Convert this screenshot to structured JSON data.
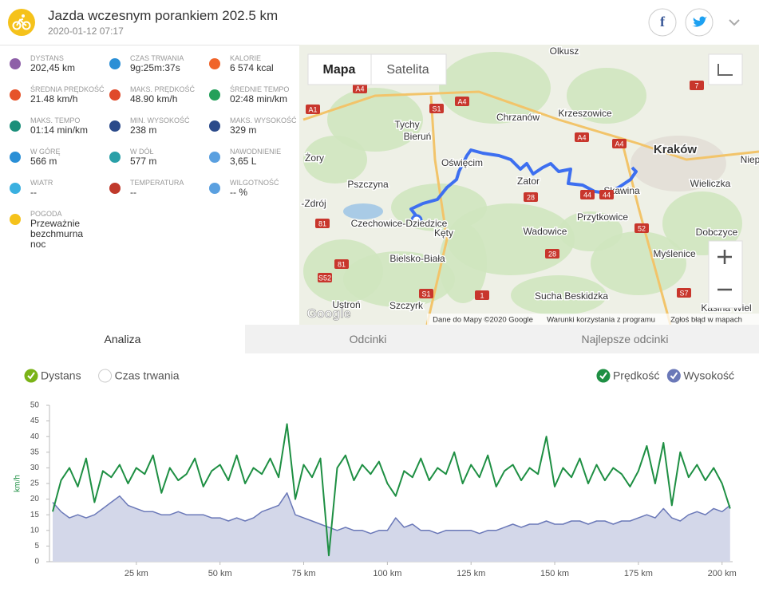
{
  "header": {
    "title": "Jazda wczesnym porankiem 202.5 km",
    "date": "2020-01-12 07:17"
  },
  "stats": [
    {
      "label": "DYSTANS",
      "value": "202,45 km"
    },
    {
      "label": "CZAS TRWANIA",
      "value": "9g:25m:37s"
    },
    {
      "label": "KALORIE",
      "value": "6 574 kcal"
    },
    {
      "label": "ŚREDNIA PRĘDKOŚĆ",
      "value": "21.48 km/h"
    },
    {
      "label": "MAKS. PRĘDKOŚĆ",
      "value": "48.90 km/h"
    },
    {
      "label": "ŚREDNIE TEMPO",
      "value": "02:48 min/km"
    },
    {
      "label": "MAKS. TEMPO",
      "value": "01:14 min/km"
    },
    {
      "label": "MIN. WYSOKOŚĆ",
      "value": "238 m"
    },
    {
      "label": "MAKS. WYSOKOŚĆ",
      "value": "329 m"
    },
    {
      "label": "W GÓRĘ",
      "value": "566 m"
    },
    {
      "label": "W DÓŁ",
      "value": "577 m"
    },
    {
      "label": "NAWODNIENIE",
      "value": "3,65 L"
    },
    {
      "label": "WIATR",
      "value": "--"
    },
    {
      "label": "TEMPERATURA",
      "value": "--"
    },
    {
      "label": "WILGOTNOŚĆ",
      "value": "-- %"
    },
    {
      "label": "POGODA",
      "value": "Przeważnie bezchmurna noc"
    }
  ],
  "map": {
    "buttons": [
      "Mapa",
      "Satelita"
    ],
    "places": [
      "Olkusz",
      "Tychy",
      "Bieruń",
      "Chrzanów",
      "Krzeszowice",
      "Kraków",
      "Niep",
      "Żory",
      "Oświęcim",
      "Zator",
      "Skawina",
      "Wieliczka",
      "Pszczyna",
      "Przytkowice",
      "-Zdrój",
      "Czechowice-Dziedzice",
      "Kęty",
      "Wadowice",
      "Dobczyce",
      "Bielsko-Biała",
      "Myślenice",
      "Sucha Beskidzka",
      "Ustroń",
      "Szczyrk",
      "Kasina Wiel"
    ],
    "roads": [
      "A4",
      "A1",
      "S1",
      "A4",
      "7",
      "A4",
      "A4",
      "44",
      "44",
      "28",
      "52",
      "28",
      "S1",
      "81",
      "81",
      "S52",
      "1",
      "S7"
    ],
    "logo": "Google",
    "attribution": [
      "Dane do Mapy ©2020 Google",
      "Warunki korzystania z programu",
      "Zgłoś błąd w mapach"
    ]
  },
  "tabs": [
    "Analiza",
    "Odcinki",
    "Najlepsze odcinki"
  ],
  "chart_data": {
    "type": "line",
    "x_options": [
      {
        "label": "Dystans",
        "checked": true
      },
      {
        "label": "Czas trwania",
        "checked": false
      }
    ],
    "ylabel": "km/h",
    "x": [
      0,
      2.5,
      5,
      7.5,
      10,
      12.5,
      15,
      17.5,
      20,
      22.5,
      25,
      27.5,
      30,
      32.5,
      35,
      37.5,
      40,
      42.5,
      45,
      47.5,
      50,
      52.5,
      55,
      57.5,
      60,
      62.5,
      65,
      67.5,
      70,
      72.5,
      75,
      77.5,
      80,
      82.5,
      85,
      87.5,
      90,
      92.5,
      95,
      97.5,
      100,
      102.5,
      105,
      107.5,
      110,
      112.5,
      115,
      117.5,
      120,
      122.5,
      125,
      127.5,
      130,
      132.5,
      135,
      137.5,
      140,
      142.5,
      145,
      147.5,
      150,
      152.5,
      155,
      157.5,
      160,
      162.5,
      165,
      167.5,
      170,
      172.5,
      175,
      177.5,
      180,
      182.5,
      185,
      187.5,
      190,
      192.5,
      195,
      197.5,
      200,
      202.4
    ],
    "series": [
      {
        "name": "Prędkość",
        "color": "#1e8f43",
        "values": [
          16,
          26,
          30,
          24,
          33,
          19,
          29,
          27,
          31,
          25,
          30,
          28,
          34,
          22,
          30,
          26,
          28,
          33,
          24,
          29,
          31,
          26,
          34,
          25,
          30,
          28,
          33,
          27,
          44,
          20,
          31,
          27,
          33,
          2,
          30,
          34,
          26,
          31,
          28,
          32,
          25,
          21,
          29,
          27,
          33,
          26,
          30,
          28,
          35,
          25,
          31,
          27,
          34,
          24,
          29,
          31,
          26,
          30,
          28,
          40,
          24,
          30,
          27,
          33,
          25,
          31,
          26,
          30,
          28,
          24,
          29,
          37,
          25,
          38,
          18,
          35,
          27,
          31,
          26,
          30,
          25,
          17
        ]
      },
      {
        "name": "Wysokość",
        "color": "#6a78b8",
        "fill": "#d3d7e9",
        "values": [
          19,
          16,
          14,
          15,
          14,
          15,
          17,
          19,
          21,
          18,
          17,
          16,
          16,
          15,
          15,
          16,
          15,
          15,
          15,
          14,
          14,
          13,
          14,
          13,
          14,
          16,
          17,
          18,
          22,
          15,
          14,
          13,
          12,
          11,
          10,
          11,
          10,
          10,
          9,
          10,
          10,
          14,
          11,
          12,
          10,
          10,
          9,
          10,
          10,
          10,
          10,
          9,
          10,
          10,
          11,
          12,
          11,
          12,
          12,
          13,
          12,
          12,
          13,
          13,
          12,
          13,
          13,
          12,
          13,
          13,
          14,
          15,
          14,
          17,
          14,
          13,
          15,
          16,
          15,
          17,
          16,
          18
        ]
      }
    ],
    "xlim": [
      0,
      202.45
    ],
    "ylim": [
      0,
      50
    ],
    "xticks": [
      {
        "value": 25,
        "label": "25 km"
      },
      {
        "value": 50,
        "label": "50 km"
      },
      {
        "value": 75,
        "label": "75 km"
      },
      {
        "value": 100,
        "label": "100 km"
      },
      {
        "value": 125,
        "label": "125 km"
      },
      {
        "value": 150,
        "label": "150 km"
      },
      {
        "value": 175,
        "label": "175 km"
      },
      {
        "value": 200,
        "label": "200 km"
      }
    ],
    "yticks": [
      0,
      5,
      10,
      15,
      20,
      25,
      30,
      35,
      40,
      45,
      50
    ],
    "grid": false
  }
}
